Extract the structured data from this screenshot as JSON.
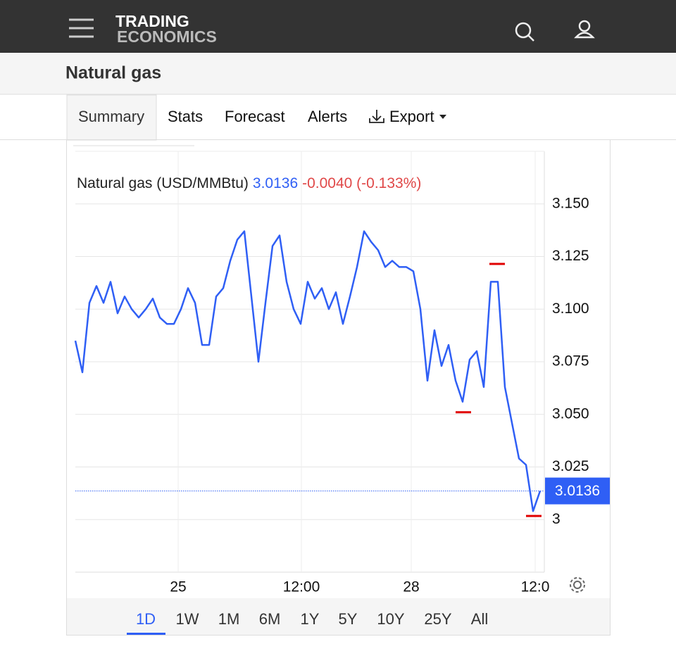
{
  "header": {
    "logo_top": "TRADING",
    "logo_bottom": "ECONOMICS"
  },
  "title": "Natural gas",
  "tabs": [
    "Summary",
    "Stats",
    "Forecast",
    "Alerts",
    "Export"
  ],
  "ranges": [
    "1D",
    "1W",
    "1M",
    "6M",
    "1Y",
    "5Y",
    "10Y",
    "25Y",
    "All"
  ],
  "chart_data": {
    "type": "line",
    "quote": {
      "name": "Natural gas (USD/MMBtu)",
      "price": "3.0136",
      "change": "-0.0040 (-0.133%)"
    },
    "series": [
      {
        "name": "Natural gas",
        "color": "#2f5ff5",
        "x": [
          0,
          1,
          2,
          3,
          4,
          5,
          6,
          7,
          8,
          9,
          10,
          11,
          12,
          13,
          14,
          15,
          16,
          17,
          18,
          19,
          20,
          21,
          22,
          23,
          24,
          25,
          26,
          27,
          28,
          29,
          30,
          31,
          32,
          33,
          34,
          35,
          36,
          37,
          38,
          39,
          40,
          41,
          42,
          43,
          44,
          45,
          46,
          47,
          48,
          49,
          50,
          51,
          52,
          53,
          54,
          55,
          56,
          57,
          58,
          59,
          60,
          61,
          62,
          63,
          64,
          65,
          66
        ],
        "values": [
          3.085,
          3.07,
          3.103,
          3.111,
          3.103,
          3.113,
          3.098,
          3.106,
          3.1,
          3.096,
          3.1,
          3.105,
          3.096,
          3.093,
          3.093,
          3.1,
          3.11,
          3.103,
          3.083,
          3.083,
          3.106,
          3.11,
          3.123,
          3.133,
          3.137,
          3.106,
          3.075,
          3.103,
          3.13,
          3.135,
          3.113,
          3.1,
          3.093,
          3.113,
          3.105,
          3.11,
          3.1,
          3.108,
          3.093,
          3.106,
          3.12,
          3.137,
          3.132,
          3.128,
          3.12,
          3.123,
          3.12,
          3.12,
          3.118,
          3.1,
          3.066,
          3.09,
          3.073,
          3.083,
          3.066,
          3.056,
          3.076,
          3.08,
          3.063,
          3.113,
          3.113,
          3.063,
          3.046,
          3.029,
          3.026,
          3.004,
          3.0136
        ]
      }
    ],
    "extremes": [
      {
        "x": 55.1,
        "value": 3.051,
        "color": "#e00000"
      },
      {
        "x": 59.9,
        "value": 3.1215,
        "color": "#e00000"
      },
      {
        "x": 65.1,
        "value": 3.0017,
        "color": "#e00000"
      }
    ],
    "xlim": [
      0,
      66.6
    ],
    "xticks": [
      {
        "value": 14.6,
        "label": "25"
      },
      {
        "value": 32.1,
        "label": "12:00"
      },
      {
        "value": 47.7,
        "label": "28"
      },
      {
        "value": 65.3,
        "label": "12:0"
      }
    ],
    "ylim": [
      2.975,
      3.175
    ],
    "yticks": [
      3,
      {
        "value": 3.025,
        "label": "3.025"
      },
      {
        "value": 3.05,
        "label": "3.050"
      },
      {
        "value": 3.075,
        "label": "3.075"
      },
      {
        "value": 3.1,
        "label": "3.100"
      },
      {
        "value": 3.125,
        "label": "3.125"
      },
      {
        "value": 3.15,
        "label": "3.150"
      }
    ],
    "grid": true
  }
}
